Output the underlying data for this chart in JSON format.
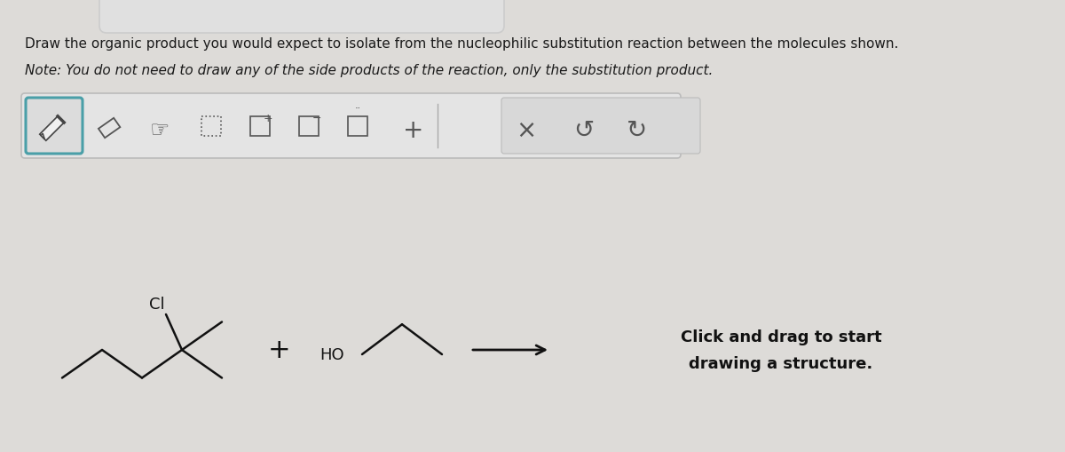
{
  "bg_color": "#dddbd8",
  "page_bg": "#f0efed",
  "title_line1": "Draw the organic product you would expect to isolate from the nucleophilic substitution reaction between the molecules shown.",
  "title_line2": "Note: You do not need to draw any of the side products of the reaction, only the substitution product.",
  "toolbar_bg": "#e8e8e8",
  "toolbar_border": "#bbbbbb",
  "toolbar_highlight": "#4a9fa8",
  "click_text_line1": "Click and drag to start",
  "click_text_line2": "drawing a structure.",
  "font_color": "#1a1a1a",
  "arrow_color": "#111111",
  "mol_color": "#111111",
  "lw_mol": 1.8,
  "top_bar_color": "#e0e0e0",
  "top_bar_border": "#cccccc"
}
